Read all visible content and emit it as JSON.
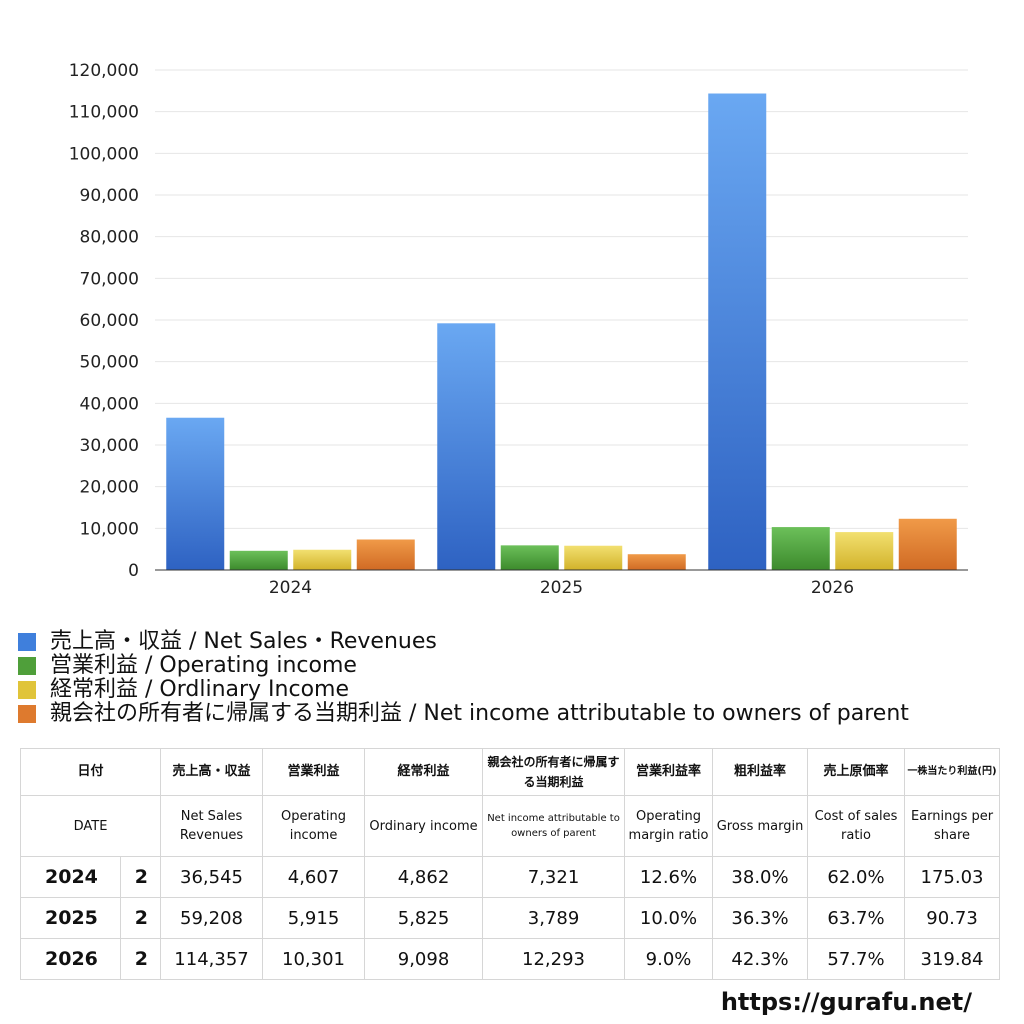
{
  "chart_data": {
    "type": "bar",
    "categories": [
      "2024",
      "2025",
      "2026"
    ],
    "series": [
      {
        "name": "売上高・収益 / Net Sales・Revenues",
        "color": "#3f7fdc",
        "values": [
          36545,
          59208,
          114357
        ]
      },
      {
        "name": "営業利益 / Operating income",
        "color": "#4f9f3a",
        "values": [
          4607,
          5915,
          10301
        ]
      },
      {
        "name": "経常利益 / Ordlinary Income",
        "color": "#e0c43a",
        "values": [
          4862,
          5825,
          9098
        ]
      },
      {
        "name": "親会社の所有者に帰属する当期利益 / Net income attributable to owners of parent",
        "color": "#de7a2e",
        "values": [
          7321,
          3789,
          12293
        ]
      }
    ],
    "ylim": [
      0,
      120000
    ],
    "yticks": [
      0,
      10000,
      20000,
      30000,
      40000,
      50000,
      60000,
      70000,
      80000,
      90000,
      100000,
      110000,
      120000
    ],
    "ytick_labels": [
      "0",
      "10,000",
      "20,000",
      "30,000",
      "40,000",
      "50,000",
      "60,000",
      "70,000",
      "80,000",
      "90,000",
      "100,000",
      "110,000",
      "120,000"
    ],
    "grid": true,
    "legend_position": "bottom"
  },
  "table": {
    "header_jp": [
      "日付",
      "売上高・収益",
      "営業利益",
      "経常利益",
      "親会社の所有者に帰属する当期利益",
      "営業利益率",
      "粗利益率",
      "売上原価率",
      "一株当たり利益(円)"
    ],
    "header_en": [
      "DATE",
      "Net Sales Revenues",
      "Operating income",
      "Ordinary income",
      "Net income attributable to owners of parent",
      "Operating margin ratio",
      "Gross margin",
      "Cost of sales ratio",
      "Earnings per share"
    ],
    "rows": [
      {
        "year": "2024",
        "quarter": "2",
        "values": [
          "36,545",
          "4,607",
          "4,862",
          "7,321",
          "12.6%",
          "38.0%",
          "62.0%",
          "175.03"
        ]
      },
      {
        "year": "2025",
        "quarter": "2",
        "values": [
          "59,208",
          "5,915",
          "5,825",
          "3,789",
          "10.0%",
          "36.3%",
          "63.7%",
          "90.73"
        ]
      },
      {
        "year": "2026",
        "quarter": "2",
        "values": [
          "114,357",
          "10,301",
          "9,098",
          "12,293",
          "9.0%",
          "42.3%",
          "57.7%",
          "319.84"
        ]
      }
    ]
  },
  "watermark": "https://gurafu.net/"
}
